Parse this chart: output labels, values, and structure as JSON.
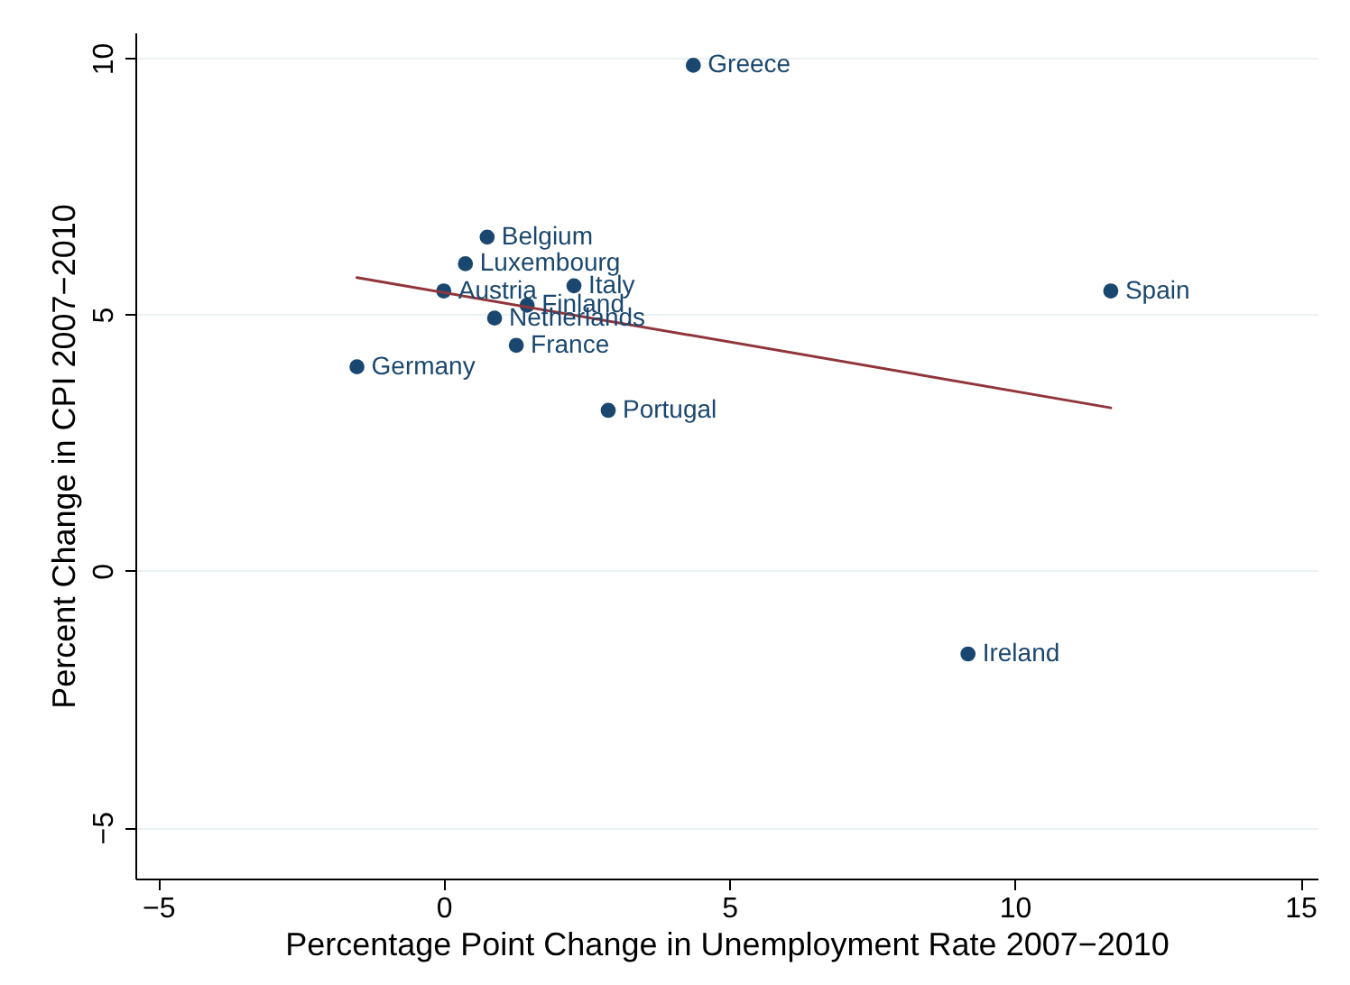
{
  "chart_data": {
    "type": "scatter",
    "xlabel": "Percentage Point Change in Unemployment Rate 2007−2010",
    "ylabel": "Percent Change in CPI 2007−2010",
    "xlim": [
      -5.4,
      15.3
    ],
    "ylim": [
      -6,
      10.5
    ],
    "xticks": [
      {
        "value": -5,
        "label": "−5"
      },
      0,
      5,
      10,
      15
    ],
    "yticks": [
      {
        "value": -5,
        "label": "−5"
      },
      0,
      5,
      10
    ],
    "grid": "y",
    "series": [
      {
        "color": "#1a476f",
        "marker": "circle",
        "x": [
          4.37,
          0.76,
          0.38,
          0.0,
          2.28,
          1.46,
          0.89,
          1.27,
          -1.52,
          2.88,
          11.68,
          9.18
        ],
        "values": [
          9.86,
          6.51,
          5.99,
          5.46,
          5.56,
          5.18,
          4.93,
          4.4,
          3.98,
          3.13,
          5.46,
          -1.62
        ]
      },
      {
        "type": "line",
        "color": "#90353b",
        "marker": "none",
        "x": [
          -1.52,
          11.68
        ],
        "values": [
          5.72,
          3.18
        ]
      }
    ],
    "annotations": [
      {
        "text": "Greece",
        "x": 4.37,
        "y": 9.86
      },
      {
        "text": "Belgium",
        "x": 0.76,
        "y": 6.51
      },
      {
        "text": "Luxembourg",
        "x": 0.38,
        "y": 5.99
      },
      {
        "text": "Austria",
        "x": 0.0,
        "y": 5.46
      },
      {
        "text": "Italy",
        "x": 2.28,
        "y": 5.56
      },
      {
        "text": "Finland",
        "x": 1.46,
        "y": 5.18
      },
      {
        "text": "Netherlands",
        "x": 0.89,
        "y": 4.93
      },
      {
        "text": "France",
        "x": 1.27,
        "y": 4.4
      },
      {
        "text": "Germany",
        "x": -1.52,
        "y": 3.98
      },
      {
        "text": "Portugal",
        "x": 2.88,
        "y": 3.13
      },
      {
        "text": "Spain",
        "x": 11.68,
        "y": 5.46
      },
      {
        "text": "Ireland",
        "x": 9.18,
        "y": -1.62
      }
    ]
  }
}
